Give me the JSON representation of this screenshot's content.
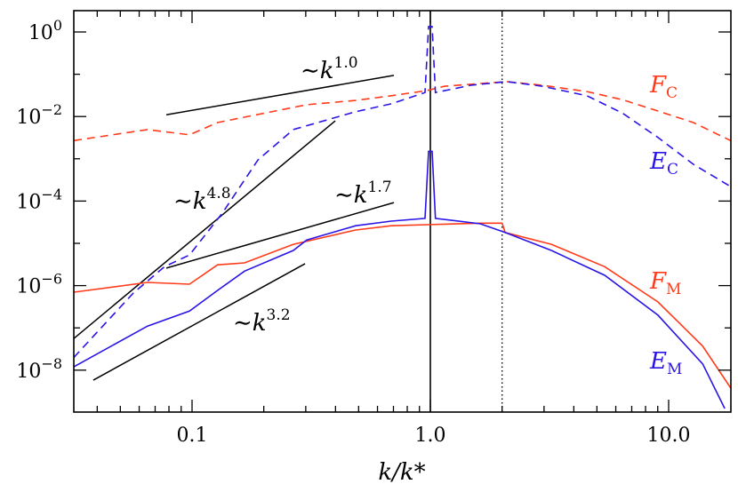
{
  "chart_data": {
    "type": "line",
    "title": "",
    "xlabel": "k/k*",
    "ylabel": "",
    "xscale": "log",
    "yscale": "log",
    "xlim": [
      0.032,
      18
    ],
    "ylim": [
      1e-09,
      3.16
    ],
    "grid": false,
    "x_tick_labels": [
      "0.1",
      "1.0",
      "10.0"
    ],
    "x_ticks": [
      0.1,
      1.0,
      10.0
    ],
    "y_ticks": [
      1,
      0.01,
      0.0001,
      1e-06,
      1e-08
    ],
    "y_tick_labels": [
      {
        "base": "10",
        "exp": "0"
      },
      {
        "base": "10",
        "exp": "−2"
      },
      {
        "base": "10",
        "exp": "−4"
      },
      {
        "base": "10",
        "exp": "−6"
      },
      {
        "base": "10",
        "exp": "−8"
      }
    ],
    "colors": {
      "red": "#ff3a1a",
      "blue": "#2a14e6",
      "black": "#000000"
    },
    "series": [
      {
        "name": "F_C",
        "label_main": "F",
        "label_sub": "C",
        "color": "#ff3a1a",
        "style": "dashed",
        "x": [
          0.0319,
          0.065,
          0.0975,
          0.128,
          0.303,
          0.486,
          0.685,
          0.966,
          1.147,
          2.09,
          2.95,
          4.54,
          6.4,
          9.02,
          12.7,
          18.2
        ],
        "y": [
          0.0027,
          0.0049,
          0.0037,
          0.0072,
          0.019,
          0.024,
          0.031,
          0.041,
          0.052,
          0.067,
          0.055,
          0.039,
          0.025,
          0.0135,
          0.0072,
          0.0027
        ]
      },
      {
        "name": "E_C",
        "label_main": "E",
        "label_sub": "C",
        "color": "#2a14e6",
        "style": "dashed",
        "x": [
          0.0319,
          0.0567,
          0.0766,
          0.0975,
          0.134,
          0.189,
          0.266,
          0.486,
          0.685,
          0.95,
          0.983,
          1.017,
          1.05,
          1.48,
          2.09,
          2.95,
          4.54,
          6.4,
          9.02,
          12.7,
          18.2
        ],
        "y": [
          2e-08,
          6.7e-07,
          2.8e-06,
          5.3e-06,
          5.2e-05,
          0.00094,
          0.0049,
          0.013,
          0.02,
          0.037,
          1.34,
          1.34,
          0.037,
          0.055,
          0.067,
          0.052,
          0.031,
          0.012,
          0.0032,
          0.00074,
          0.00022
        ]
      },
      {
        "name": "F_M",
        "label_main": "F",
        "label_sub": "M",
        "color": "#ff3a1a",
        "style": "solid",
        "x": [
          0.0319,
          0.065,
          0.0975,
          0.128,
          0.166,
          0.266,
          0.486,
          0.685,
          0.966,
          1.62,
          2.0,
          2.06,
          3.22,
          5.39,
          9.02,
          13.9,
          18.2
        ],
        "y": [
          7e-07,
          1.19e-06,
          1.08e-06,
          3.1e-06,
          3.45e-06,
          9.5e-06,
          2.07e-05,
          2.6e-05,
          2.76e-05,
          3e-05,
          3e-05,
          1.8e-05,
          9.5e-06,
          2.8e-06,
          4.1e-07,
          3.7e-08,
          3.8e-09
        ]
      },
      {
        "name": "E_M",
        "label_main": "E",
        "label_sub": "M",
        "color": "#2a14e6",
        "style": "solid",
        "x": [
          0.0319,
          0.065,
          0.0975,
          0.128,
          0.166,
          0.266,
          0.303,
          0.486,
          0.685,
          0.95,
          0.983,
          1.017,
          1.05,
          1.62,
          2.06,
          3.22,
          5.39,
          9.02,
          13.9,
          17.2
        ],
        "y": [
          1.2e-08,
          1.1e-07,
          2.5e-07,
          7.7e-07,
          2.2e-06,
          6.8e-06,
          1.2e-05,
          2.6e-05,
          3.35e-05,
          3.9e-05,
          0.0015,
          0.0015,
          3.9e-05,
          2.9e-05,
          1.8e-05,
          6.8e-06,
          1.75e-06,
          2e-07,
          1.4e-08,
          1.24e-09
        ]
      }
    ],
    "reference_lines": [
      {
        "label": "1.0",
        "x": [
          0.078,
          0.703
        ],
        "y": [
          0.011,
          0.094
        ]
      },
      {
        "label": "4.8",
        "x": [
          0.0319,
          0.399
        ],
        "y": [
          5.6e-08,
          0.0079
        ]
      },
      {
        "label": "1.7",
        "x": [
          0.078,
          0.703
        ],
        "y": [
          2.6e-06,
          9.2e-05
        ]
      },
      {
        "label": "3.2",
        "x": [
          0.0385,
          0.298
        ],
        "y": [
          5.8e-09,
          3.3e-06
        ]
      }
    ],
    "reference_prefix": "∼k",
    "vertical_lines": [
      {
        "x": 1.0,
        "style": "solid"
      },
      {
        "x": 2.0,
        "style": "dotted"
      }
    ]
  }
}
